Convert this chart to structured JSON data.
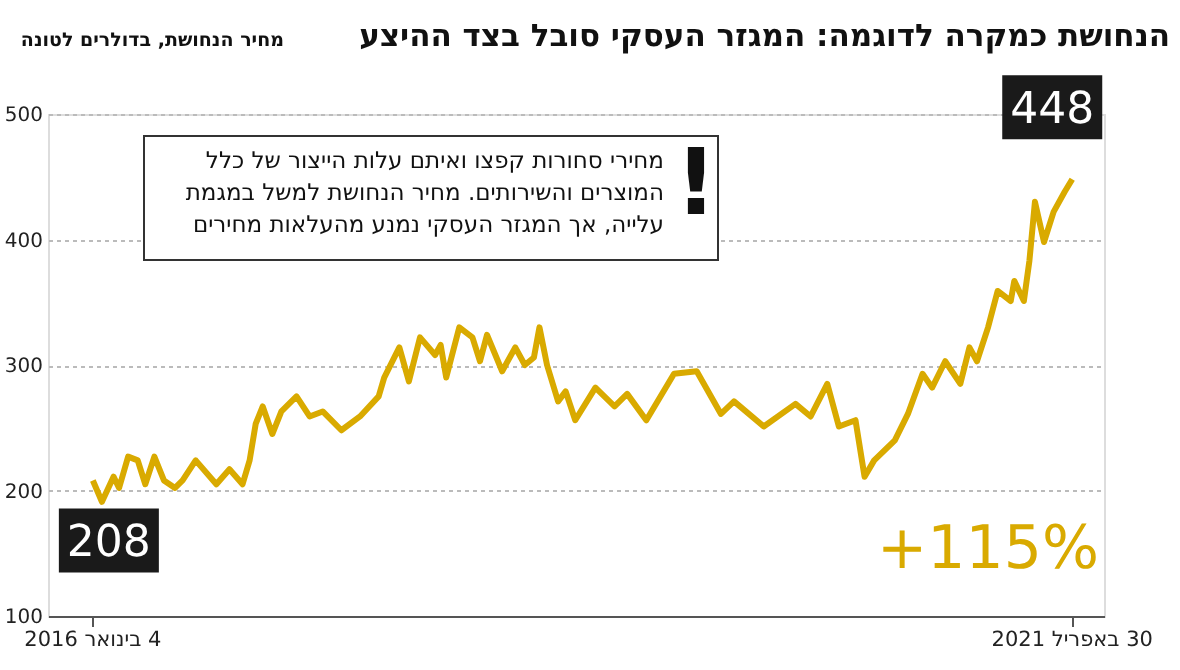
{
  "chart_data": {
    "type": "line",
    "title": "הנחושת כמקרה לדוגמה: המגזר העסקי סובל בצד ההיצע",
    "subtitle": "מחיר הנחושת, בדולרים לטונה",
    "x": [
      "2016-01-04",
      "2016-01-22",
      "2016-02-14",
      "2016-02-25",
      "2016-03-14",
      "2016-04-02",
      "2016-04-17",
      "2016-05-05",
      "2016-05-24",
      "2016-06-15",
      "2016-06-30",
      "2016-07-26",
      "2016-09-05",
      "2016-10-01",
      "2016-10-27",
      "2016-11-10",
      "2016-11-22",
      "2016-12-06",
      "2016-12-25",
      "2017-01-12",
      "2017-02-11",
      "2017-03-09",
      "2017-04-04",
      "2017-05-11",
      "2017-06-17",
      "2017-07-24",
      "2017-08-04",
      "2017-09-03",
      "2017-09-22",
      "2017-10-14",
      "2017-11-13",
      "2017-11-24",
      "2017-12-05",
      "2017-12-31",
      "2018-01-26",
      "2018-02-10",
      "2018-02-24",
      "2018-03-26",
      "2018-04-21",
      "2018-05-10",
      "2018-05-28",
      "2018-06-08",
      "2018-06-23",
      "2018-07-15",
      "2018-07-30",
      "2018-08-18",
      "2018-09-27",
      "2018-11-04",
      "2018-11-29",
      "2019-01-06",
      "2019-03-02",
      "2019-04-16",
      "2019-06-03",
      "2019-06-29",
      "2019-08-27",
      "2019-10-29",
      "2019-11-28",
      "2019-12-31",
      "2020-01-23",
      "2020-02-25",
      "2020-03-14",
      "2020-04-02",
      "2020-05-13",
      "2020-06-08",
      "2020-07-07",
      "2020-07-26",
      "2020-08-21",
      "2020-09-20",
      "2020-10-08",
      "2020-10-23",
      "2020-11-14",
      "2020-12-03",
      "2020-12-29",
      "2021-01-05",
      "2021-01-24",
      "2021-02-04",
      "2021-02-15",
      "2021-03-05",
      "2021-03-24",
      "2021-04-15",
      "2021-04-30"
    ],
    "values": [
      208,
      191,
      211,
      202,
      227,
      224,
      205,
      227,
      208,
      202,
      208,
      224,
      205,
      217,
      205,
      224,
      253,
      267,
      245,
      263,
      275,
      259,
      263,
      248,
      259,
      275,
      290,
      314,
      287,
      322,
      308,
      316,
      290,
      330,
      322,
      303,
      324,
      295,
      314,
      300,
      306,
      330,
      300,
      271,
      279,
      256,
      282,
      267,
      277,
      256,
      293,
      295,
      261,
      271,
      251,
      269,
      259,
      285,
      251,
      256,
      211,
      224,
      240,
      261,
      293,
      282,
      303,
      285,
      314,
      303,
      330,
      359,
      351,
      367,
      351,
      383,
      430,
      398,
      422,
      438,
      448
    ],
    "color": "#d9aa00",
    "xlim": [
      "2015-10-07",
      "2021-07-02"
    ],
    "xticks": [
      {
        "value": "2016-01-04",
        "label": "4 בינואר 2016"
      },
      {
        "value": "2021-04-30",
        "label": "30 באפריל 2021"
      }
    ],
    "ylim": [
      100,
      500
    ],
    "yticks": [
      100,
      200,
      300,
      400,
      500
    ],
    "grid": "y",
    "annotations": [
      {
        "text": "208",
        "x": "2016-01-04",
        "y": 208
      },
      {
        "text": "448",
        "x": "2021-04-30",
        "y": 448
      },
      "מחירי סחורות קפצו ואיתם עלות הייצור של כלל\nהמוצרים והשירותים. מחיר הנחושת למשל במגמת\nעלייה, אך המגזר העסקי נמנע מהעלאות מחירים",
      "!",
      "+115%"
    ]
  }
}
